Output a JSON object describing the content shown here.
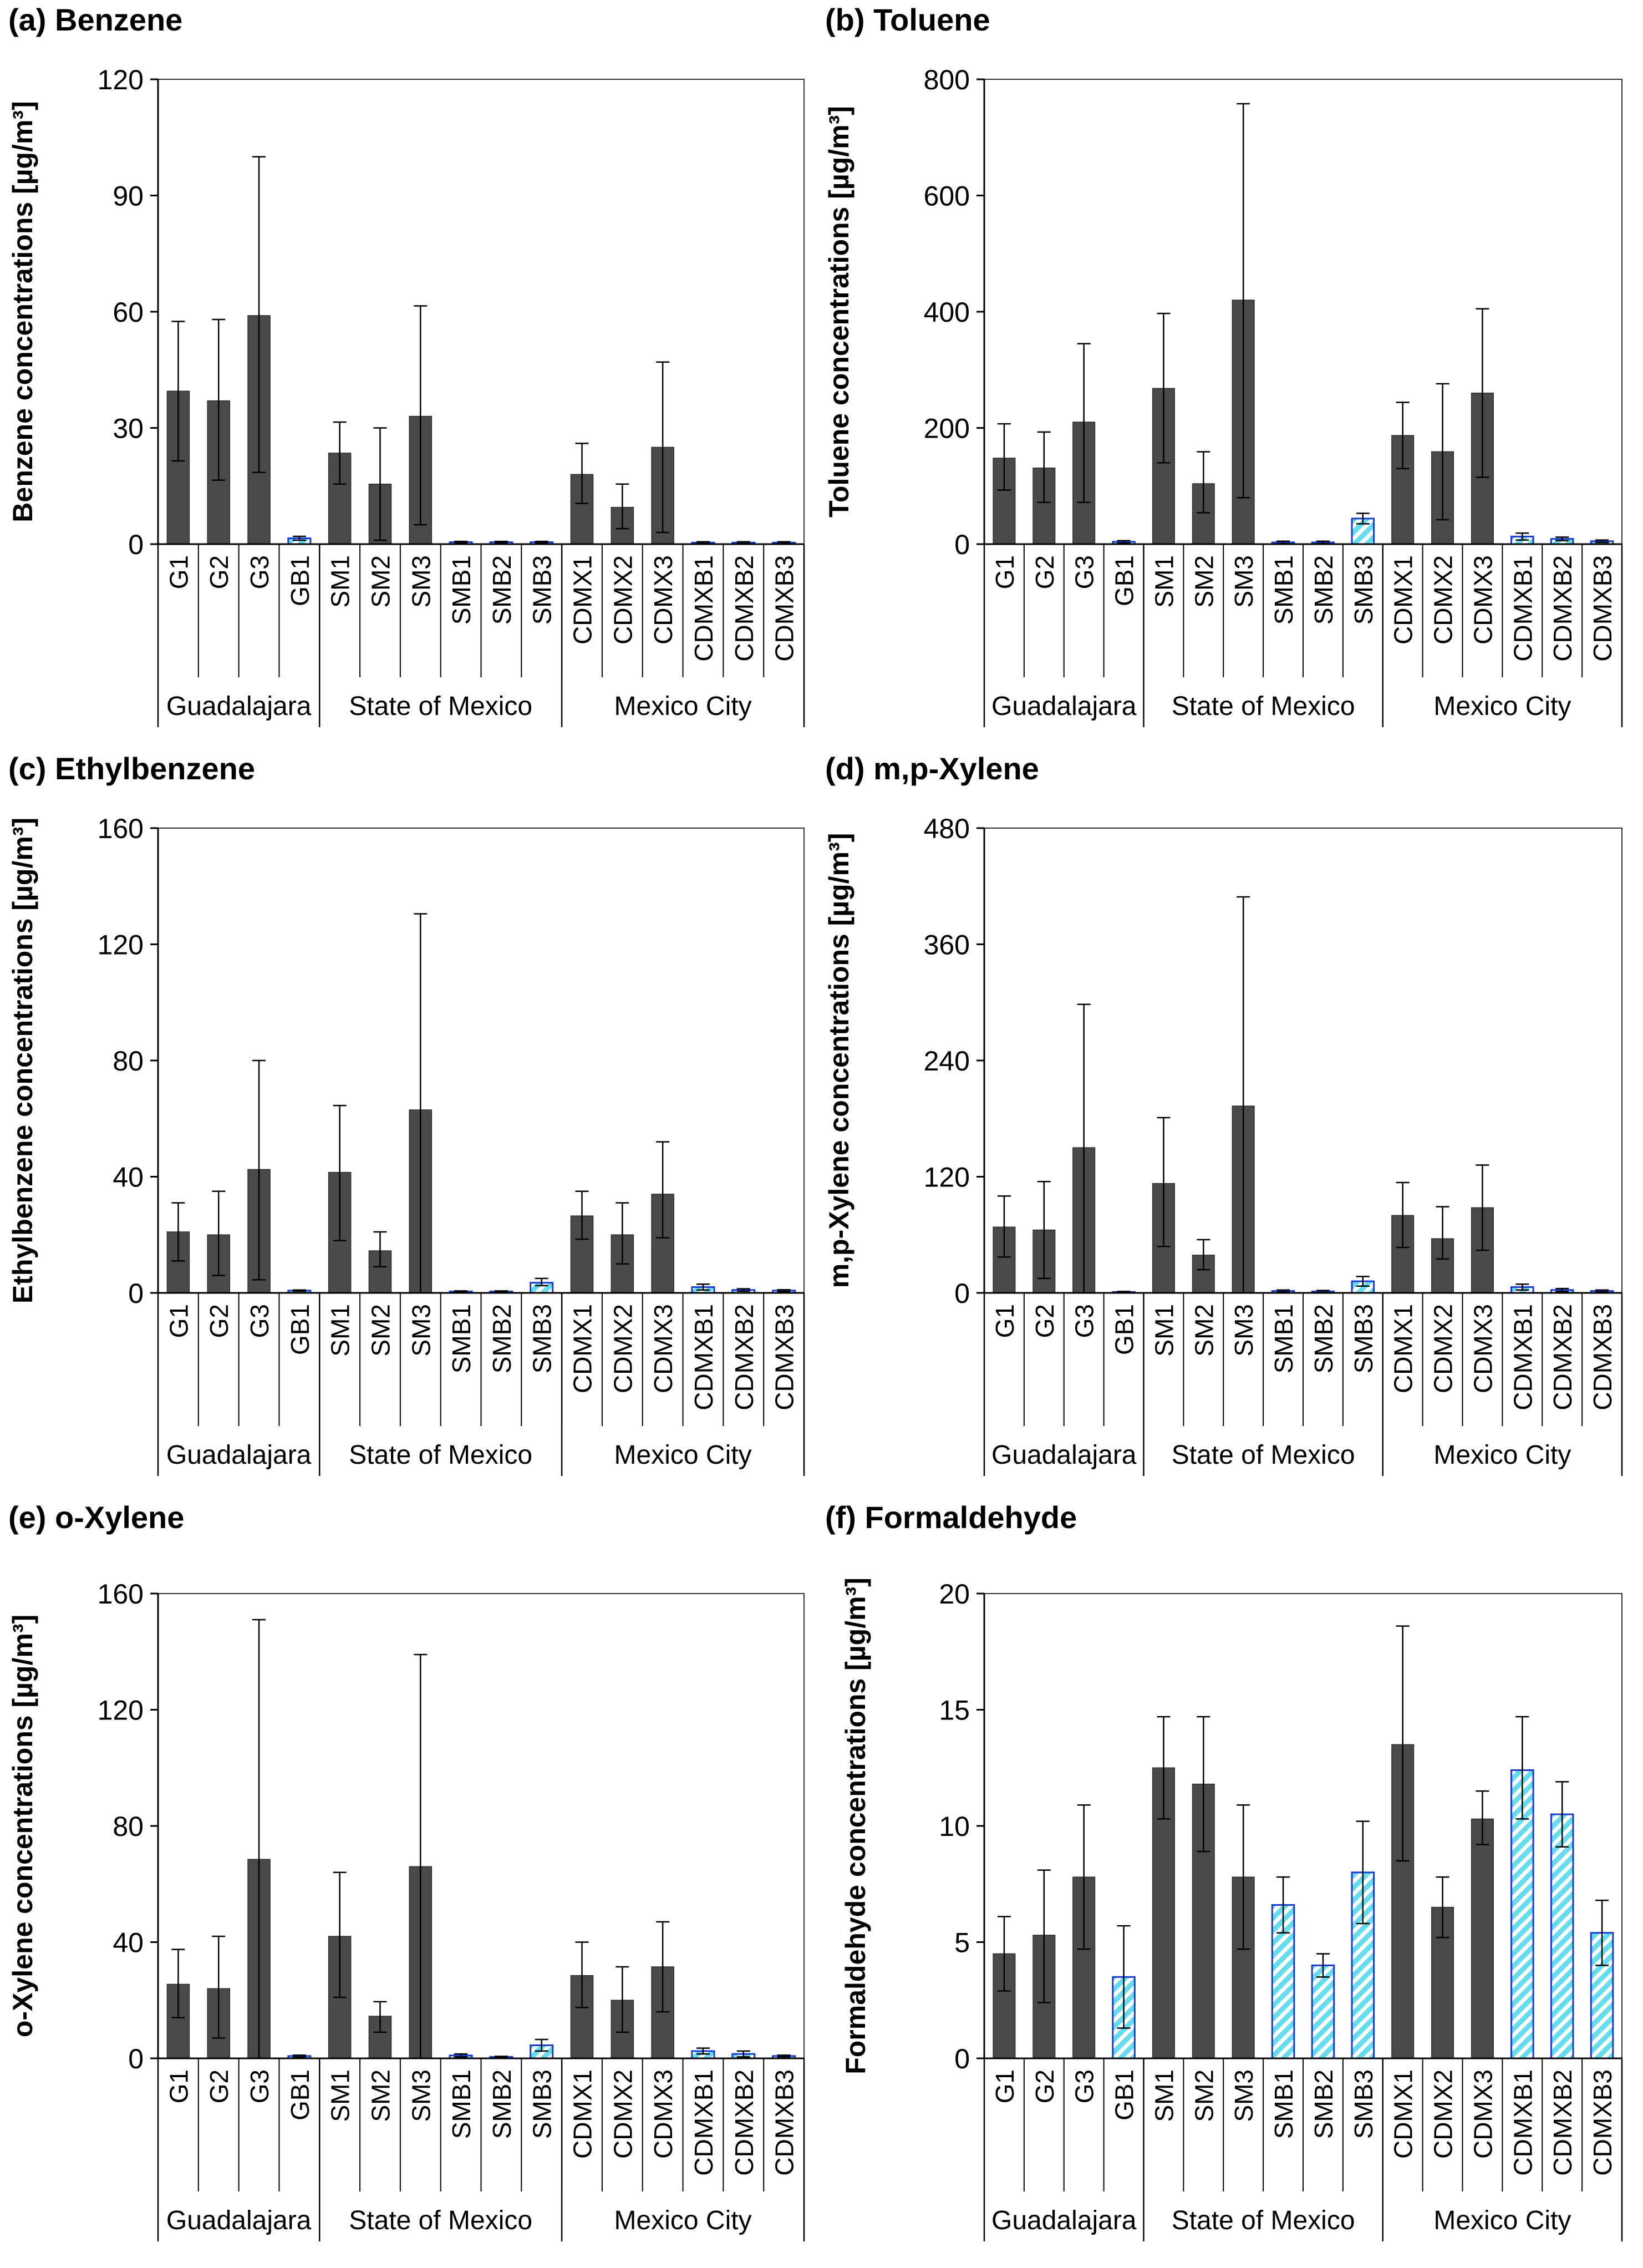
{
  "figure_caption": "",
  "colors": {
    "site_fill": "#4a4a4a",
    "blank_fill": "#66ddee",
    "blank_stroke": "#1a3cd1",
    "axis": "#000000",
    "frame": "#333333"
  },
  "groups": [
    {
      "name": "Guadalajara",
      "count": 4
    },
    {
      "name": "State of Mexico",
      "count": 6
    },
    {
      "name": "Mexico City",
      "count": 6
    }
  ],
  "categories": [
    "G1",
    "G2",
    "G3",
    "GB1",
    "SM1",
    "SM2",
    "SM3",
    "SMB1",
    "SMB2",
    "SMB3",
    "CDMX1",
    "CDMX2",
    "CDMX3",
    "CDMXB1",
    "CDMXB2",
    "CDMXB3"
  ],
  "blank_flags": [
    false,
    false,
    false,
    true,
    false,
    false,
    false,
    true,
    true,
    true,
    false,
    false,
    false,
    true,
    true,
    true
  ],
  "chart_data": [
    {
      "type": "bar",
      "panel_label": "(a) Benzene",
      "ylabel": "Benzene concentrations [µg/m³]",
      "ylim": [
        0,
        120
      ],
      "yticks": [
        0,
        30,
        60,
        90,
        120
      ],
      "categories": [
        "G1",
        "G2",
        "G3",
        "GB1",
        "SM1",
        "SM2",
        "SM3",
        "SMB1",
        "SMB2",
        "SMB3",
        "CDMX1",
        "CDMX2",
        "CDMX3",
        "CDMXB1",
        "CDMXB2",
        "CDMXB3"
      ],
      "values": [
        39.5,
        37,
        59,
        1.5,
        23.5,
        15.5,
        33,
        0.5,
        0.5,
        0.5,
        18,
        9.5,
        25,
        0.4,
        0.4,
        0.4
      ],
      "error_low": [
        21.5,
        16.5,
        18.5,
        1,
        15.5,
        1,
        5,
        0.3,
        0.3,
        0.3,
        10.5,
        4,
        3,
        0.2,
        0.2,
        0.2
      ],
      "error_high": [
        57.5,
        58,
        100,
        2,
        31.5,
        30,
        61.5,
        0.7,
        0.7,
        0.7,
        26,
        15.5,
        47,
        0.6,
        0.6,
        0.6
      ]
    },
    {
      "type": "bar",
      "panel_label": "(b) Toluene",
      "ylabel": "Toluene concentrations [µg/m³]",
      "ylim": [
        0,
        800
      ],
      "yticks": [
        0,
        200,
        400,
        600,
        800
      ],
      "categories": [
        "G1",
        "G2",
        "G3",
        "GB1",
        "SM1",
        "SM2",
        "SM3",
        "SMB1",
        "SMB2",
        "SMB3",
        "CDMX1",
        "CDMX2",
        "CDMX3",
        "CDMXB1",
        "CDMXB2",
        "CDMXB3"
      ],
      "values": [
        148,
        131,
        210,
        4,
        268,
        104,
        420,
        3,
        3,
        44,
        187,
        159,
        260,
        13,
        9,
        5
      ],
      "error_low": [
        93,
        72,
        72,
        2,
        140,
        54,
        80,
        1,
        1,
        35,
        130,
        42,
        115,
        7,
        6,
        3
      ],
      "error_high": [
        207,
        193,
        345,
        6,
        397,
        159,
        758,
        5,
        5,
        53,
        244,
        276,
        405,
        19,
        12,
        7
      ]
    },
    {
      "type": "bar",
      "panel_label": "(c) Ethylbenzene",
      "ylabel": "Ethylbenzene concentrations [µg/m³]",
      "ylim": [
        0,
        160
      ],
      "yticks": [
        0,
        40,
        80,
        120,
        160
      ],
      "categories": [
        "G1",
        "G2",
        "G3",
        "GB1",
        "SM1",
        "SM2",
        "SM3",
        "SMB1",
        "SMB2",
        "SMB3",
        "CDMX1",
        "CDMX2",
        "CDMX3",
        "CDMXB1",
        "CDMXB2",
        "CDMXB3"
      ],
      "values": [
        21,
        20,
        42.5,
        0.8,
        41.5,
        14.5,
        63,
        0.5,
        0.5,
        3.5,
        26.5,
        20,
        34,
        2,
        1,
        0.8
      ],
      "error_low": [
        11,
        6,
        4.5,
        0.6,
        18,
        9,
        0,
        0.3,
        0.3,
        2.5,
        18.5,
        10,
        19,
        1,
        0.6,
        0.5
      ],
      "error_high": [
        31,
        35,
        80,
        1,
        64.5,
        21,
        130.5,
        0.7,
        0.7,
        5,
        35,
        31,
        52,
        3,
        1.4,
        1.1
      ]
    },
    {
      "type": "bar",
      "panel_label": "(d) m,p-Xylene",
      "ylabel": "m,p-Xylene concentrations [µg/m³]",
      "ylim": [
        0,
        480
      ],
      "yticks": [
        0,
        120,
        240,
        360,
        480
      ],
      "categories": [
        "G1",
        "G2",
        "G3",
        "GB1",
        "SM1",
        "SM2",
        "SM3",
        "SMB1",
        "SMB2",
        "SMB3",
        "CDMX1",
        "CDMX2",
        "CDMX3",
        "CDMXB1",
        "CDMXB2",
        "CDMXB3"
      ],
      "values": [
        68,
        65,
        150,
        1,
        113,
        39,
        193,
        2,
        1.5,
        12,
        80,
        56,
        88,
        6,
        3,
        2
      ],
      "error_low": [
        37,
        15,
        0,
        0.5,
        48,
        24,
        0,
        1,
        0.5,
        7,
        47,
        35,
        44,
        3,
        1.5,
        1
      ],
      "error_high": [
        100,
        115,
        298,
        1.5,
        181,
        55,
        409,
        3,
        2.5,
        17,
        114,
        89,
        132,
        9,
        4.5,
        3
      ]
    },
    {
      "type": "bar",
      "panel_label": "(e) o-Xylene",
      "ylabel": "o-Xylene concentrations [µg/m³]",
      "ylim": [
        0,
        160
      ],
      "yticks": [
        0,
        40,
        80,
        120,
        160
      ],
      "categories": [
        "G1",
        "G2",
        "G3",
        "GB1",
        "SM1",
        "SM2",
        "SM3",
        "SMB1",
        "SMB2",
        "SMB3",
        "CDMX1",
        "CDMX2",
        "CDMX3",
        "CDMXB1",
        "CDMXB2",
        "CDMXB3"
      ],
      "values": [
        25.5,
        24,
        68.5,
        0.8,
        42,
        14.5,
        66,
        1,
        0.5,
        4.5,
        28.5,
        20,
        31.5,
        2.5,
        1.5,
        0.8
      ],
      "error_low": [
        14,
        7,
        0,
        0.5,
        21,
        9,
        0,
        0.5,
        0.3,
        2.5,
        17.5,
        9,
        16,
        1.5,
        0.5,
        0.5
      ],
      "error_high": [
        37.5,
        42,
        151,
        1.1,
        64,
        19.5,
        139,
        1.5,
        0.7,
        6.5,
        40,
        31.5,
        47,
        3.5,
        2.5,
        1.1
      ]
    },
    {
      "type": "bar",
      "panel_label": "(f) Formaldehyde",
      "ylabel": "Formaldehyde concentrations [µg/m³]",
      "ylim": [
        0,
        20
      ],
      "yticks": [
        0,
        5,
        10,
        15,
        20
      ],
      "categories": [
        "G1",
        "G2",
        "G3",
        "GB1",
        "SM1",
        "SM2",
        "SM3",
        "SMB1",
        "SMB2",
        "SMB3",
        "CDMX1",
        "CDMX2",
        "CDMX3",
        "CDMXB1",
        "CDMXB2",
        "CDMXB3"
      ],
      "values": [
        4.5,
        5.3,
        7.8,
        3.5,
        12.5,
        11.8,
        7.8,
        6.6,
        4,
        8,
        13.5,
        6.5,
        10.3,
        12.4,
        10.5,
        5.4
      ],
      "error_low": [
        2.9,
        2.4,
        4.7,
        1.3,
        10.3,
        8.9,
        4.7,
        5.4,
        3.5,
        5.8,
        8.5,
        5.2,
        9.2,
        10.3,
        9.1,
        4
      ],
      "error_high": [
        6.1,
        8.1,
        10.9,
        5.7,
        14.7,
        14.7,
        10.9,
        7.8,
        4.5,
        10.2,
        18.6,
        7.8,
        11.5,
        14.7,
        11.9,
        6.8
      ]
    }
  ]
}
